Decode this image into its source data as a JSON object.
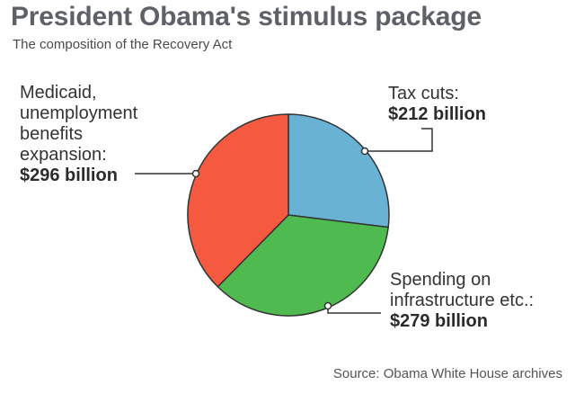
{
  "title": "President Obama's stimulus package",
  "subtitle": "The composition of the Recovery Act",
  "source": "Source: Obama White House archives",
  "chart_data": {
    "type": "pie",
    "slices": [
      {
        "label_lines": [
          "Tax cuts:"
        ],
        "value_label": "$212 billion",
        "value": 212,
        "color": "#6ab2d4"
      },
      {
        "label_lines": [
          "Spending on",
          "infrastructure etc.:"
        ],
        "value_label": "$279 billion",
        "value": 279,
        "color": "#4fba4f"
      },
      {
        "label_lines": [
          "Medicaid,",
          "unemployment",
          "benefits",
          "expansion:"
        ],
        "value_label": "$296 billion",
        "value": 296,
        "color": "#f55a40"
      }
    ]
  }
}
